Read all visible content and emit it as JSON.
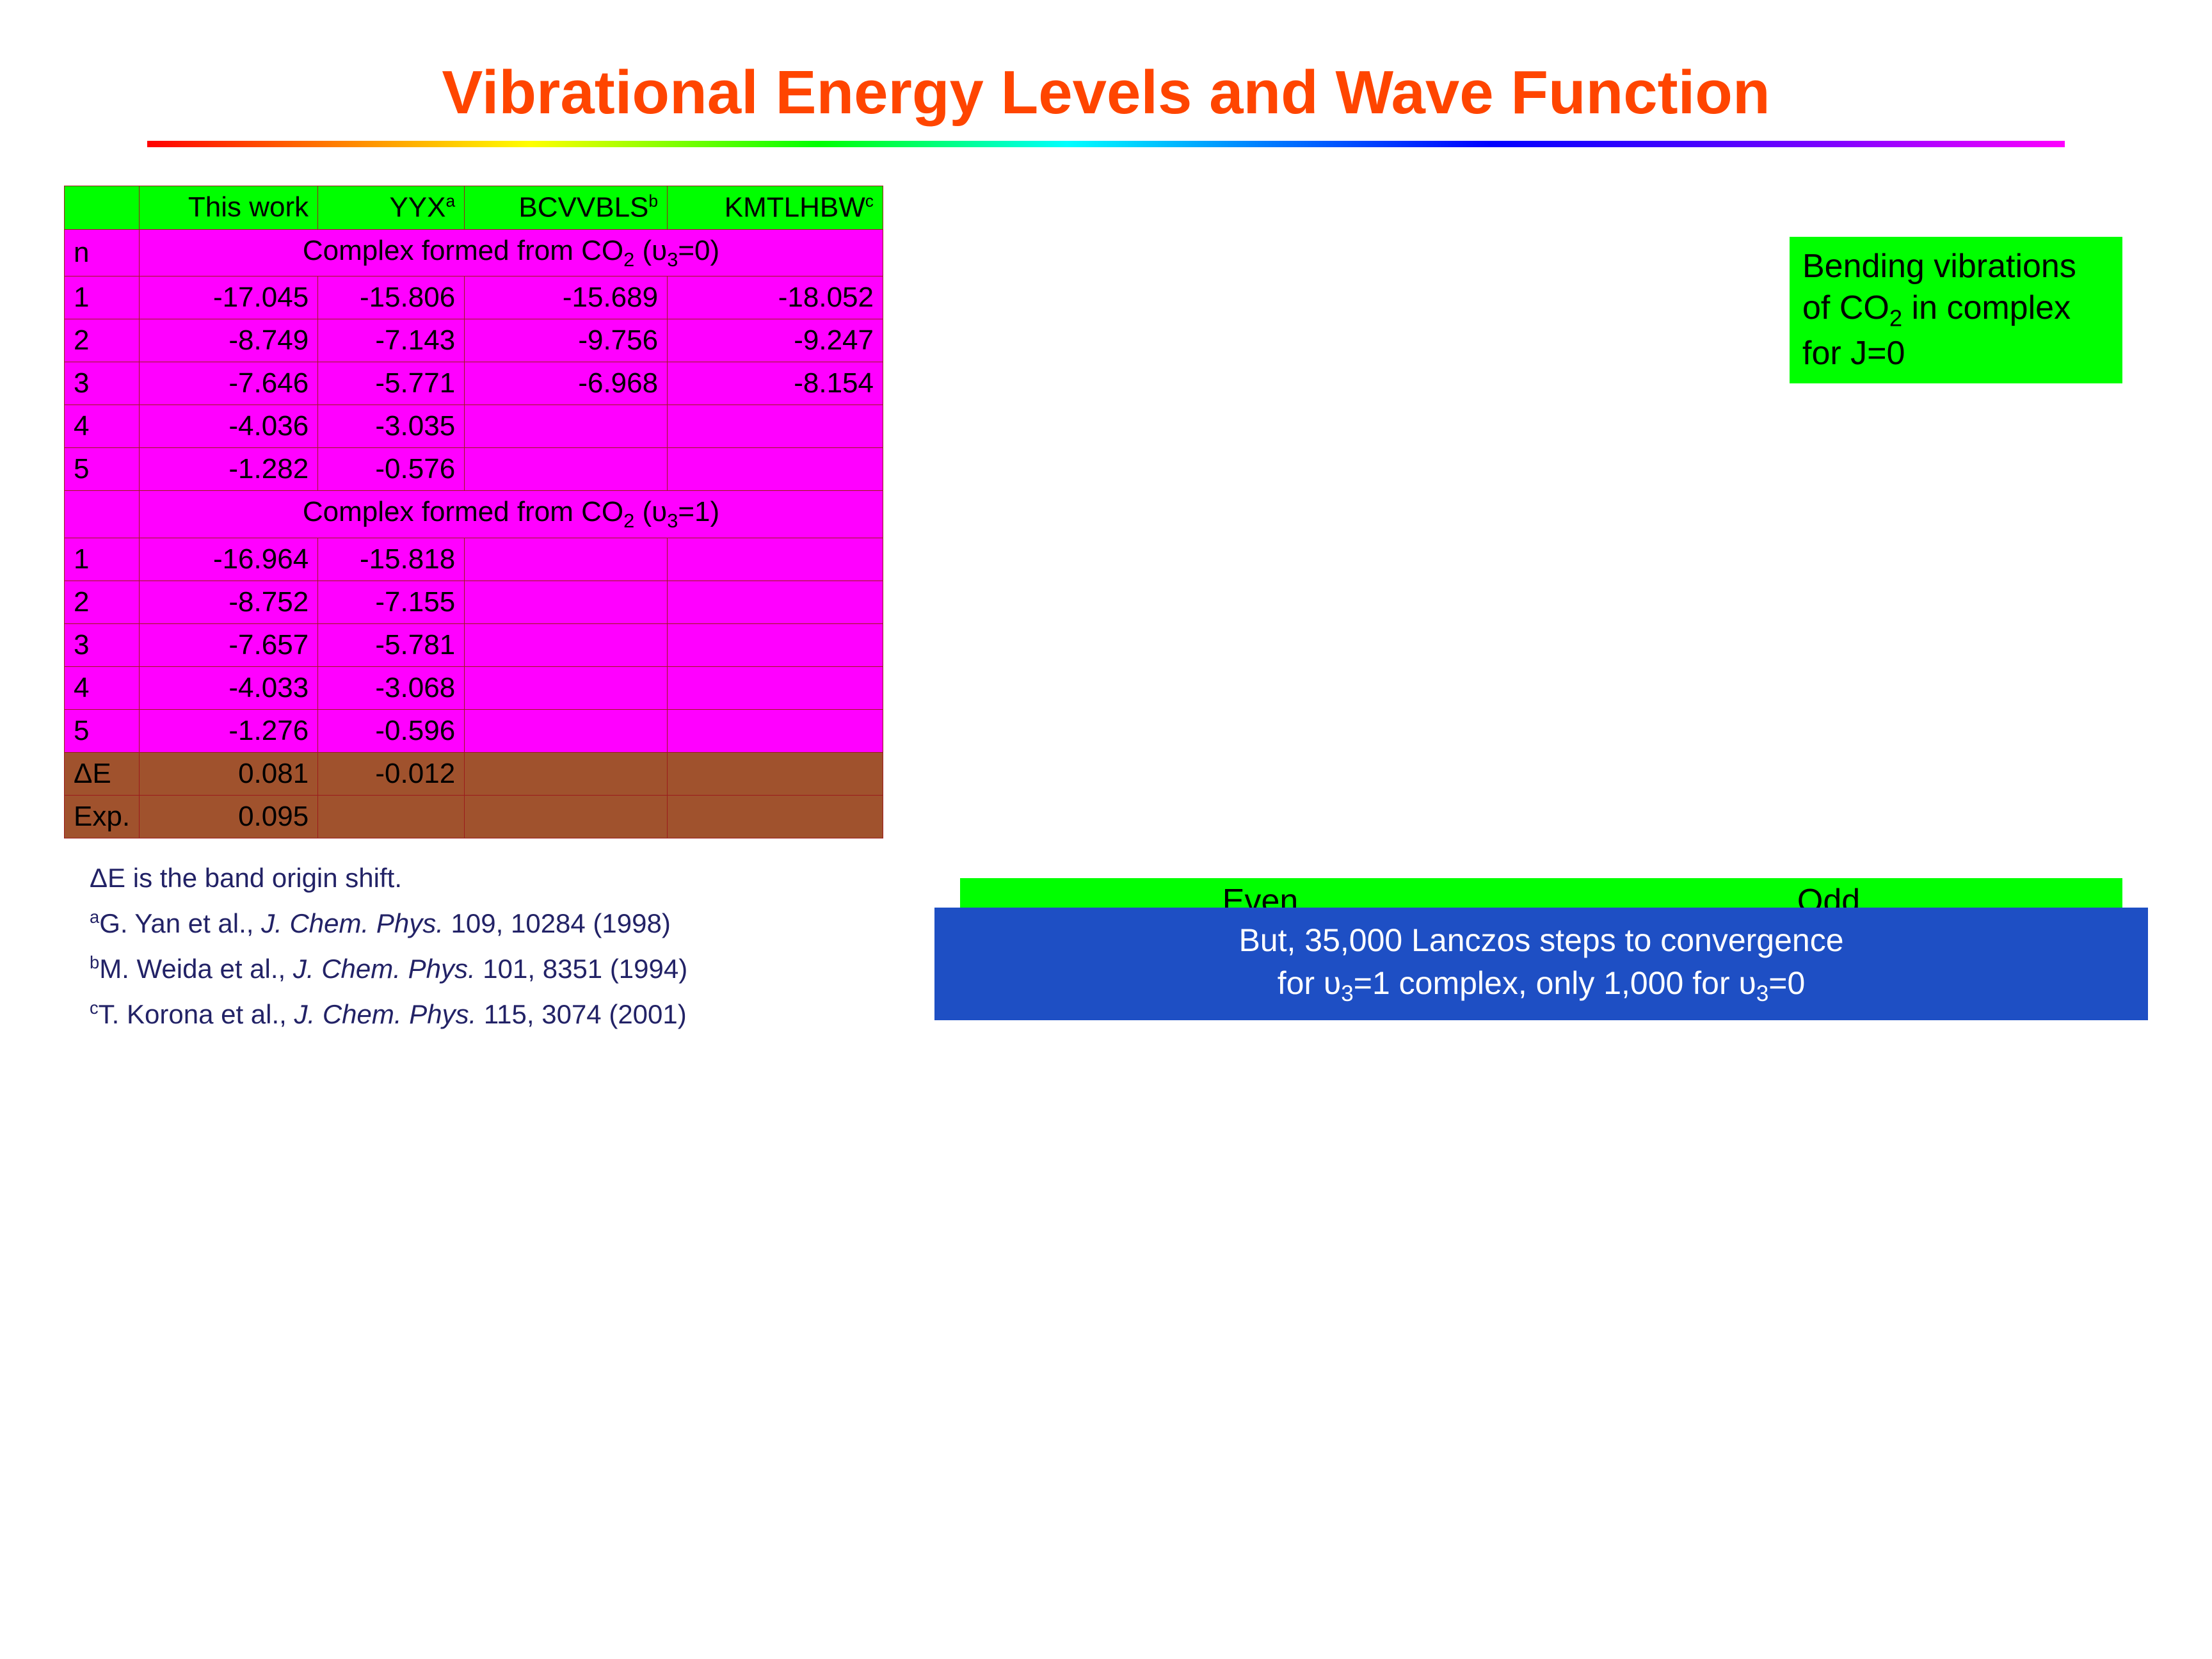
{
  "title": "Vibrational Energy Levels and Wave Function",
  "headers": {
    "blank": "",
    "c1": "This work",
    "c2": "YYX",
    "c2_sup": "a",
    "c3": "BCVVBLS",
    "c3_sup": "b",
    "c4": "KMTLHBW",
    "c4_sup": "c"
  },
  "section1": {
    "n_label": "n",
    "label_prefix": "Complex formed from CO",
    "label_sub": "2",
    "label_tail": " (υ",
    "label_tail_sub": "3",
    "label_tail_end": "=0)",
    "rows": [
      {
        "n": "1",
        "a": "-17.045",
        "b": "-15.806",
        "c": "-15.689",
        "d": "-18.052"
      },
      {
        "n": "2",
        "a": "-8.749",
        "b": "-7.143",
        "c": "-9.756",
        "d": "-9.247"
      },
      {
        "n": "3",
        "a": "-7.646",
        "b": "-5.771",
        "c": "-6.968",
        "d": "-8.154"
      },
      {
        "n": "4",
        "a": "-4.036",
        "b": "-3.035",
        "c": "",
        "d": ""
      },
      {
        "n": "5",
        "a": "-1.282",
        "b": "-0.576",
        "c": "",
        "d": ""
      }
    ]
  },
  "section2": {
    "label_prefix": "Complex formed from CO",
    "label_sub": "2",
    "label_tail": " (υ",
    "label_tail_sub": "3",
    "label_tail_end": "=1)",
    "rows": [
      {
        "n": "1",
        "a": "-16.964",
        "b": "-15.818",
        "c": "",
        "d": ""
      },
      {
        "n": "2",
        "a": "-8.752",
        "b": "-7.155",
        "c": "",
        "d": ""
      },
      {
        "n": "3",
        "a": "-7.657",
        "b": "-5.781",
        "c": "",
        "d": ""
      },
      {
        "n": "4",
        "a": "-4.033",
        "b": "-3.068",
        "c": "",
        "d": ""
      },
      {
        "n": "5",
        "a": "-1.276",
        "b": "-0.596",
        "c": "",
        "d": ""
      }
    ]
  },
  "delta": {
    "label": "ΔE",
    "a": "0.081",
    "b": "-0.012",
    "c": "",
    "d": ""
  },
  "exp": {
    "label": "Exp.",
    "a": "0.095",
    "b": "",
    "c": "",
    "d": ""
  },
  "footnotes": {
    "shift": "ΔE is the band origin shift.",
    "a_sup": "a",
    "a": "G. Yan et al., ",
    "a_ital": "J. Chem. Phys.",
    "a_tail": "  109, 10284 (1998)",
    "b_sup": "b",
    "b": "M. Weida et al., ",
    "b_ital": "J. Chem. Phys.",
    "b_tail": "  101, 8351 (1994)",
    "c_sup": "c",
    "c": "T. Korona et al., ",
    "c_ital": "J. Chem. Phys.",
    "c_tail": "  115, 3074 (2001)"
  },
  "bend": {
    "l1": "Bending vibrations",
    "l2_prefix": "of CO",
    "l2_sub": "2",
    "l2_tail": " in complex",
    "l3": "for J=0"
  },
  "evenodd": {
    "even": "Even",
    "odd": "Odd"
  },
  "lanczos": {
    "l1": "But, 35,000 Lanczos steps to convergence",
    "l2_prefix": "for υ",
    "l2_sub": "3",
    "l2_mid": "=1 complex, only 1,000 for υ",
    "l2_sub2": "3",
    "l2_end": "=0"
  },
  "colors": {
    "title": "#ff4500",
    "pink": "#ff00ff",
    "brown": "#a0522d",
    "green": "#00ff00",
    "blue": "#1e4fc4",
    "border": "#9b1b1b",
    "foot": "#222266"
  }
}
